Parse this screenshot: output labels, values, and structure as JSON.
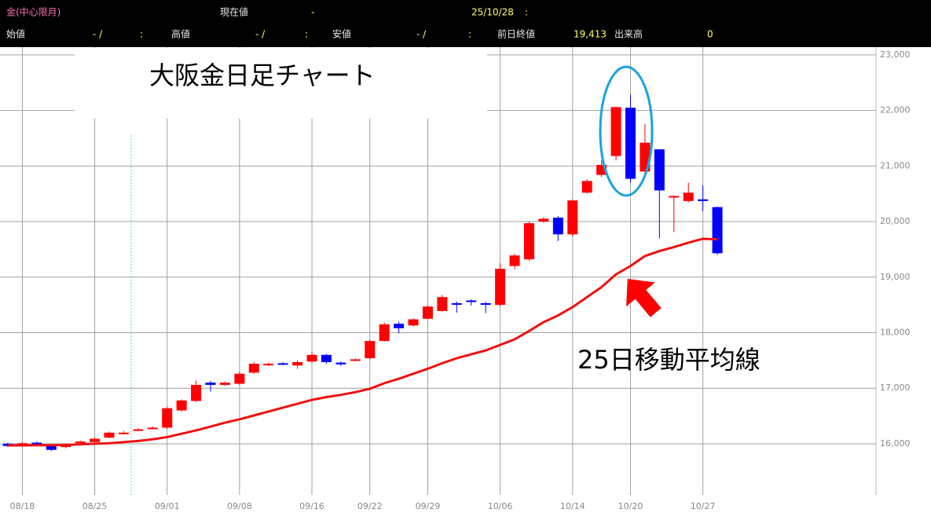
{
  "header": {
    "instrument": "金(中心限月)",
    "current_label": "現在値",
    "current_value": "-",
    "date": "25/10/28",
    "time": ":",
    "open_label": "始値",
    "open_value": "- /",
    "open_time": ":",
    "high_label": "高値",
    "high_value": "- /",
    "high_time": ":",
    "low_label": "安値",
    "low_value": "- /",
    "low_time": ":",
    "prev_close_label": "前日終値",
    "prev_close_value": "19,413",
    "volume_label": "出来高",
    "volume_value": "0"
  },
  "chart_data": {
    "type": "candlestick",
    "title": "大阪金日足チャート",
    "categories": [
      null,
      "08/18",
      null,
      null,
      null,
      null,
      "08/25",
      null,
      null,
      null,
      null,
      "09/01",
      null,
      null,
      null,
      null,
      "09/08",
      null,
      null,
      null,
      null,
      "09/16",
      null,
      null,
      null,
      "09/22",
      null,
      null,
      null,
      "09/29",
      null,
      null,
      null,
      null,
      "10/06",
      null,
      null,
      null,
      null,
      "10/14",
      null,
      null,
      null,
      "10/20",
      null,
      null,
      null,
      null,
      "10/27",
      null
    ],
    "open": [
      16000,
      15980,
      16020,
      15970,
      15940,
      16020,
      16030,
      16110,
      16180,
      16240,
      16270,
      16290,
      16600,
      16770,
      17100,
      17060,
      17080,
      17280,
      17420,
      17450,
      17410,
      17480,
      17600,
      17460,
      17500,
      17540,
      17850,
      18160,
      18130,
      18250,
      18390,
      18530,
      18580,
      18530,
      18500,
      19200,
      19320,
      20000,
      20070,
      19770,
      20520,
      20840,
      21180,
      22050,
      20900,
      21300,
      20450,
      20370,
      20400,
      20260
    ],
    "high": [
      16020,
      16030,
      16040,
      16000,
      15990,
      16060,
      16110,
      16220,
      16230,
      16280,
      16310,
      16660,
      16800,
      17140,
      17130,
      17120,
      17300,
      17470,
      17460,
      17470,
      17500,
      17650,
      17620,
      17480,
      17540,
      17870,
      18180,
      18200,
      18260,
      18490,
      18680,
      18560,
      18600,
      18560,
      19250,
      19420,
      20000,
      20080,
      20100,
      20400,
      20760,
      21100,
      22070,
      22290,
      21760,
      21300,
      20470,
      20700,
      20650,
      20270
    ],
    "low": [
      15940,
      15960,
      15980,
      15870,
      15920,
      16000,
      16010,
      16100,
      16170,
      16230,
      16260,
      16270,
      16580,
      16750,
      16940,
      17040,
      17060,
      17260,
      17400,
      17420,
      17350,
      17460,
      17440,
      17400,
      17480,
      17520,
      17840,
      17990,
      18110,
      18240,
      18380,
      18360,
      18490,
      18350,
      18480,
      19140,
      19290,
      19980,
      19650,
      19730,
      20500,
      20800,
      21100,
      20700,
      20880,
      19700,
      19810,
      20340,
      20190,
      19400
    ],
    "close": [
      15960,
      16010,
      16000,
      15890,
      15980,
      16040,
      16090,
      16200,
      16200,
      16260,
      16290,
      16640,
      16780,
      17060,
      17060,
      17100,
      17260,
      17440,
      17440,
      17440,
      17470,
      17600,
      17470,
      17430,
      17520,
      17850,
      18150,
      18080,
      18240,
      18470,
      18640,
      18510,
      18560,
      18520,
      19150,
      19390,
      19970,
      20050,
      19770,
      20380,
      20730,
      21020,
      22060,
      20770,
      21420,
      20560,
      20460,
      20520,
      20370,
      19430
    ],
    "up_color": "#ff0000",
    "down_color": "#0000ff",
    "ma": {
      "name": "25日移動平均線",
      "color": "#ee1111",
      "values": [
        15970,
        15970,
        15975,
        15975,
        15980,
        15990,
        16000,
        16010,
        16030,
        16050,
        16080,
        16120,
        16180,
        16240,
        16310,
        16380,
        16440,
        16510,
        16580,
        16650,
        16720,
        16790,
        16840,
        16880,
        16930,
        16990,
        17090,
        17170,
        17260,
        17350,
        17450,
        17540,
        17610,
        17680,
        17780,
        17880,
        18030,
        18190,
        18310,
        18460,
        18640,
        18820,
        19050,
        19200,
        19380,
        19470,
        19540,
        19620,
        19690,
        19680
      ]
    },
    "ylim": [
      15080,
      23140
    ],
    "yticks": [
      {
        "value": 16000,
        "label": "16,000"
      },
      {
        "value": 17000,
        "label": "17,000"
      },
      {
        "value": 18000,
        "label": "18,000"
      },
      {
        "value": 19000,
        "label": "19,000"
      },
      {
        "value": 20000,
        "label": "20,000"
      },
      {
        "value": 21000,
        "label": "21,000"
      },
      {
        "value": 22000,
        "label": "22,000"
      },
      {
        "value": 23000,
        "label": "23,000"
      }
    ],
    "grid": true
  }
}
